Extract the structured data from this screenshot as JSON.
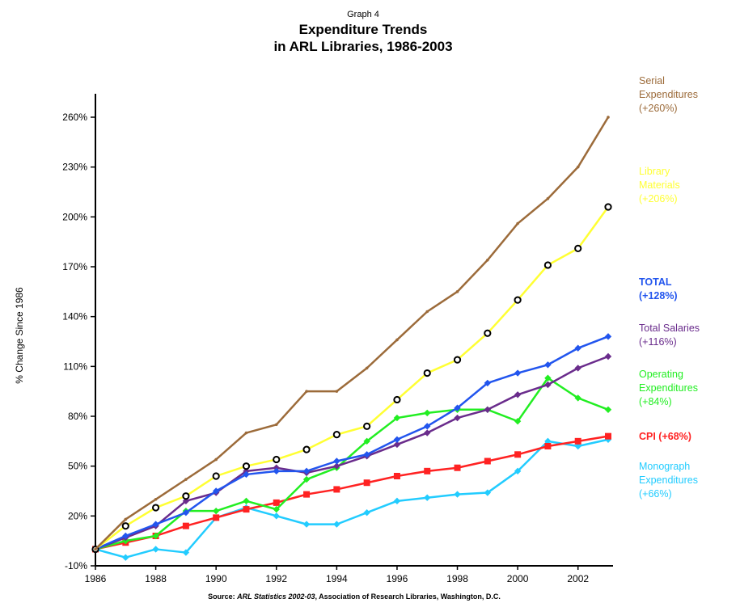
{
  "chart_data": {
    "type": "line",
    "supertitle": "Graph 4",
    "title_lines": [
      "Expenditure Trends",
      "in ARL Libraries, 1986-2003"
    ],
    "ylabel": "% Change Since 1986",
    "xlabel": "",
    "ylim": [
      -10,
      275
    ],
    "xlim": [
      1986,
      2003
    ],
    "y_ticks": [
      -10,
      20,
      50,
      80,
      110,
      140,
      170,
      200,
      230,
      260
    ],
    "y_tick_labels": [
      "-10%",
      "20%",
      "50%",
      "80%",
      "110%",
      "140%",
      "170%",
      "200%",
      "230%",
      "260%"
    ],
    "x_ticks": [
      1986,
      1988,
      1990,
      1992,
      1994,
      1996,
      1998,
      2000,
      2002
    ],
    "x_tick_labels": [
      "1986",
      "1988",
      "1990",
      "1992",
      "1994",
      "1996",
      "1998",
      "2000",
      "2002"
    ],
    "grid": false,
    "legend": "right",
    "x": [
      1986,
      1987,
      1988,
      1989,
      1990,
      1991,
      1992,
      1993,
      1994,
      1995,
      1996,
      1997,
      1998,
      1999,
      2000,
      2001,
      2002,
      2003
    ],
    "series": [
      {
        "name": "Serial Expenditures",
        "change": "(+260%)",
        "color": "#9C6B3A",
        "marker": "none",
        "values": [
          0,
          18,
          30,
          42,
          54,
          70,
          75,
          95,
          95,
          109,
          126,
          143,
          155,
          174,
          196,
          211,
          230,
          260
        ]
      },
      {
        "name": "Library Materials",
        "change": "(+206%)",
        "color": "#FFFF33",
        "marker": "circle",
        "values": [
          0,
          14,
          25,
          32,
          44,
          50,
          54,
          60,
          69,
          74,
          90,
          106,
          114,
          130,
          150,
          171,
          181,
          206
        ]
      },
      {
        "name": "TOTAL",
        "change": "(+128%)",
        "color": "#2255EE",
        "marker": "diamond",
        "values": [
          0,
          8,
          15,
          22,
          35,
          45,
          47,
          47,
          53,
          57,
          66,
          74,
          85,
          100,
          106,
          111,
          121,
          128
        ]
      },
      {
        "name": "Total Salaries",
        "change": "(+116%)",
        "color": "#6A2C8C",
        "marker": "diamond",
        "values": [
          0,
          7,
          14,
          29,
          34,
          47,
          49,
          46,
          50,
          56,
          63,
          70,
          79,
          84,
          93,
          99,
          109,
          116
        ]
      },
      {
        "name": "Operating Expenditures",
        "change": "(+84%)",
        "color": "#22EE22",
        "marker": "diamond",
        "values": [
          0,
          5,
          8,
          23,
          23,
          29,
          24,
          42,
          49,
          65,
          79,
          82,
          84,
          84,
          77,
          103,
          91,
          84
        ]
      },
      {
        "name": "CPI",
        "change": "(+68%)",
        "color": "#FF2222",
        "marker": "square",
        "values": [
          0,
          4,
          8,
          14,
          19,
          24,
          28,
          33,
          36,
          40,
          44,
          47,
          49,
          53,
          57,
          62,
          65,
          68
        ]
      },
      {
        "name": "Monograph Expenditures",
        "change": "(+66%)",
        "color": "#22CCFF",
        "marker": "diamond",
        "values": [
          0,
          -5,
          0,
          -2,
          19,
          25,
          20,
          15,
          15,
          22,
          29,
          31,
          33,
          34,
          47,
          65,
          62,
          66
        ]
      }
    ],
    "legend_lines": [
      {
        "series": "Serial Expenditures",
        "lines": [
          "Serial",
          "Expenditures",
          "(+260%)"
        ],
        "bold": false
      },
      {
        "series": "Library Materials",
        "lines": [
          "Library",
          "Materials",
          "(+206%)"
        ],
        "bold": false
      },
      {
        "series": "TOTAL",
        "lines": [
          "TOTAL",
          "(+128%)"
        ],
        "bold": true
      },
      {
        "series": "Total Salaries",
        "lines": [
          "Total Salaries",
          "(+116%)"
        ],
        "bold": false
      },
      {
        "series": "Operating Expenditures",
        "lines": [
          "Operating",
          "Expenditures",
          "(+84%)"
        ],
        "bold": false
      },
      {
        "series": "CPI",
        "lines": [
          "CPI (+68%)"
        ],
        "bold": true
      },
      {
        "series": "Monograph Expenditures",
        "lines": [
          "Monograph",
          "Expenditures",
          "(+66%)"
        ],
        "bold": false
      }
    ],
    "source_prefix": "Source: ",
    "source_italic": "ARL Statistics 2002-03",
    "source_suffix": ", Association of Research Libraries, Washington, D.C."
  }
}
